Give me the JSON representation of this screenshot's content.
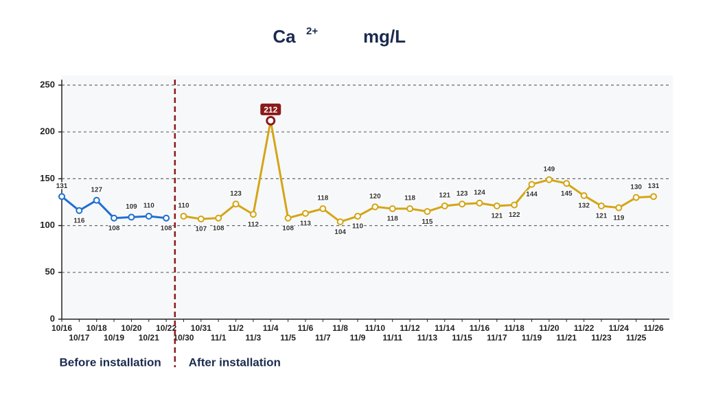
{
  "chart_data": {
    "type": "line",
    "title": "Ca",
    "title_superscript": "2+",
    "unit": "mg/L",
    "categories": [
      "10/16",
      "10/17",
      "10/18",
      "10/19",
      "10/20",
      "10/21",
      "10/22",
      "10/30",
      "10/31",
      "11/1",
      "11/2",
      "11/3",
      "11/4",
      "11/5",
      "11/6",
      "11/7",
      "11/8",
      "11/9",
      "11/10",
      "11/11",
      "11/12",
      "11/13",
      "11/14",
      "11/15",
      "11/16",
      "11/17",
      "11/18",
      "11/19",
      "11/20",
      "11/21",
      "11/22",
      "11/23",
      "11/24",
      "11/25",
      "11/26"
    ],
    "series": [
      {
        "name": "Before installation",
        "color": "#1f6fd1",
        "values": [
          131,
          116,
          127,
          108,
          109,
          110,
          108,
          null,
          null,
          null,
          null,
          null,
          null,
          null,
          null,
          null,
          null,
          null,
          null,
          null,
          null,
          null,
          null,
          null,
          null,
          null,
          null,
          null,
          null,
          null,
          null,
          null,
          null,
          null,
          null
        ]
      },
      {
        "name": "After installation",
        "color": "#d4a514",
        "values": [
          null,
          null,
          null,
          null,
          null,
          null,
          null,
          110,
          107,
          108,
          123,
          112,
          212,
          108,
          113,
          118,
          104,
          110,
          120,
          118,
          118,
          115,
          121,
          123,
          124,
          121,
          122,
          144,
          149,
          145,
          132,
          121,
          119,
          130,
          131
        ]
      }
    ],
    "ylim": [
      0,
      250
    ],
    "yticks": [
      0,
      50,
      100,
      150,
      200,
      250
    ],
    "grid": true
  }
}
